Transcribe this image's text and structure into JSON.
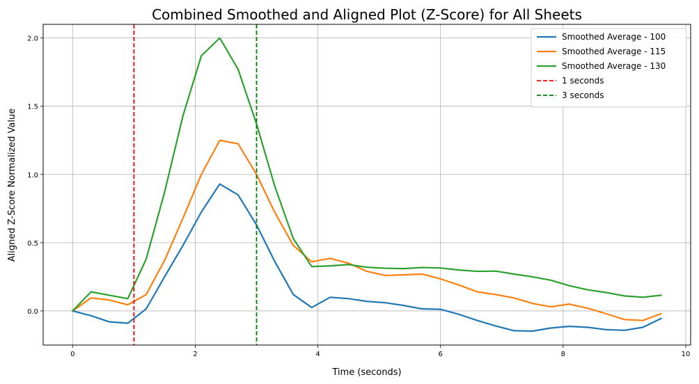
{
  "chart_data": {
    "type": "line",
    "title": "Combined Smoothed and Aligned Plot (Z-Score) for All Sheets",
    "xlabel": "Time (seconds)",
    "ylabel": "Aligned Z-Score Normalized Value",
    "xlim": [
      -0.48,
      10.08
    ],
    "ylim": [
      -0.25,
      2.1
    ],
    "xticks": [
      0,
      2,
      4,
      6,
      8,
      10
    ],
    "xtick_labels": [
      "0",
      "2",
      "4",
      "6",
      "8",
      "10"
    ],
    "yticks": [
      0.0,
      0.5,
      1.0,
      1.5,
      2.0
    ],
    "ytick_labels": [
      "0.0",
      "0.5",
      "1.0",
      "1.5",
      "2.0"
    ],
    "grid": true,
    "legend_position": "top-right",
    "x": [
      0,
      0.3,
      0.6,
      0.9,
      1.2,
      1.5,
      1.8,
      2.1,
      2.4,
      2.7,
      3.0,
      3.3,
      3.6,
      3.9,
      4.2,
      4.5,
      4.8,
      5.1,
      5.4,
      5.7,
      6.0,
      6.3,
      6.6,
      6.9,
      7.2,
      7.5,
      7.8,
      8.1,
      8.4,
      8.7,
      9.0,
      9.3,
      9.6
    ],
    "series": [
      {
        "name": "Smoothed Average - 100",
        "color": "#1f77b4",
        "values": [
          0.0,
          -0.035,
          -0.08,
          -0.09,
          0.015,
          0.25,
          0.48,
          0.725,
          0.93,
          0.85,
          0.63,
          0.36,
          0.12,
          0.025,
          0.1,
          0.09,
          0.07,
          0.06,
          0.04,
          0.015,
          0.012,
          -0.025,
          -0.07,
          -0.11,
          -0.145,
          -0.148,
          -0.125,
          -0.113,
          -0.12,
          -0.137,
          -0.142,
          -0.12,
          -0.055
        ]
      },
      {
        "name": "Smoothed Average - 115",
        "color": "#ff7f0e",
        "values": [
          0.0,
          0.095,
          0.08,
          0.045,
          0.12,
          0.37,
          0.68,
          1.0,
          1.25,
          1.225,
          1.0,
          0.72,
          0.48,
          0.36,
          0.385,
          0.35,
          0.29,
          0.26,
          0.265,
          0.27,
          0.235,
          0.19,
          0.14,
          0.12,
          0.095,
          0.055,
          0.03,
          0.05,
          0.02,
          -0.02,
          -0.063,
          -0.07,
          -0.02
        ]
      },
      {
        "name": "Smoothed Average - 130",
        "color": "#2ca02c",
        "values": [
          0.0,
          0.14,
          0.115,
          0.09,
          0.38,
          0.87,
          1.43,
          1.87,
          2.0,
          1.77,
          1.37,
          0.91,
          0.53,
          0.325,
          0.33,
          0.34,
          0.32,
          0.313,
          0.31,
          0.318,
          0.315,
          0.3,
          0.29,
          0.292,
          0.27,
          0.25,
          0.225,
          0.185,
          0.155,
          0.135,
          0.11,
          0.1,
          0.115
        ]
      }
    ],
    "vlines": [
      {
        "x": 1,
        "name": "1 seconds",
        "color": "#ff0000"
      },
      {
        "x": 3,
        "name": "3 seconds",
        "color": "#008000"
      }
    ]
  }
}
